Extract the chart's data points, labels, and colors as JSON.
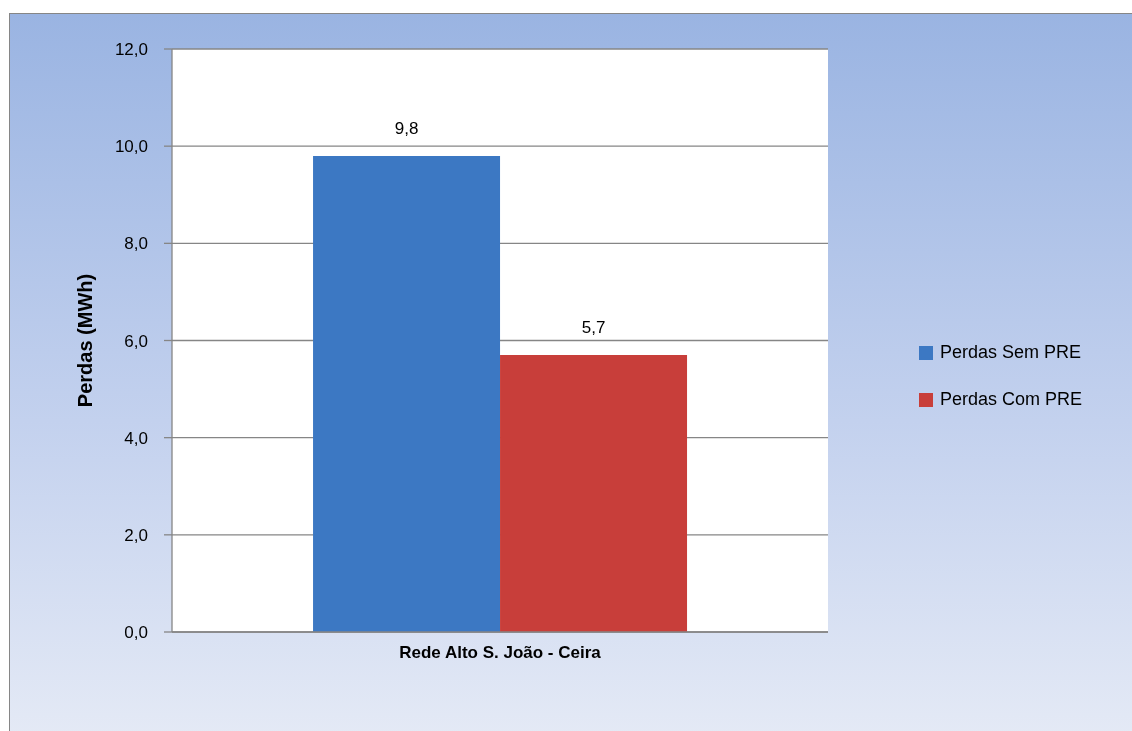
{
  "chart_data": {
    "type": "bar",
    "ylabel": "Perdas (MWh)",
    "categories": [
      "Rede Alto S. João - Ceira"
    ],
    "series": [
      {
        "name": "Perdas Sem PRE",
        "color": "#3c78c3",
        "values": [
          9.8
        ],
        "value_labels": [
          "9,8"
        ]
      },
      {
        "name": "Perdas Com PRE",
        "color": "#c83e3a",
        "values": [
          5.7
        ],
        "value_labels": [
          "5,7"
        ]
      }
    ],
    "ylim": [
      0,
      12
    ],
    "yticks": [
      {
        "value": 0,
        "label": "0,0"
      },
      {
        "value": 2,
        "label": "2,0"
      },
      {
        "value": 4,
        "label": "4,0"
      },
      {
        "value": 6,
        "label": "6,0"
      },
      {
        "value": 8,
        "label": "8,0"
      },
      {
        "value": 10,
        "label": "10,0"
      },
      {
        "value": 12,
        "label": "12,0"
      }
    ],
    "grid": "y",
    "legend": "right"
  }
}
